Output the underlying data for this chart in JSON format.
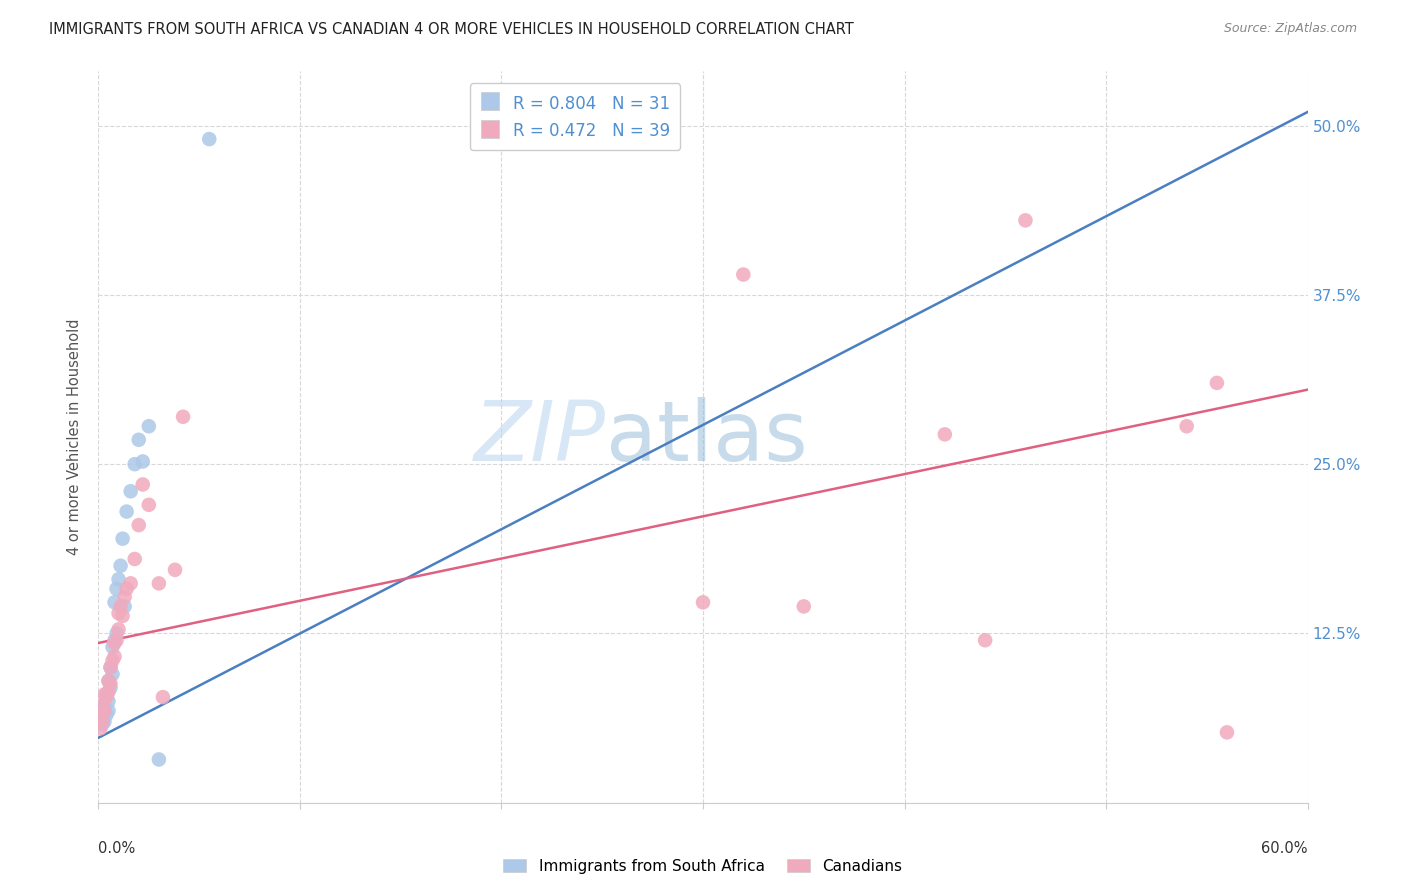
{
  "title": "IMMIGRANTS FROM SOUTH AFRICA VS CANADIAN 4 OR MORE VEHICLES IN HOUSEHOLD CORRELATION CHART",
  "source": "Source: ZipAtlas.com",
  "ylabel": "4 or more Vehicles in Household",
  "watermark_zip": "ZIP",
  "watermark_atlas": "atlas",
  "xlim": [
    0.0,
    0.6
  ],
  "ylim": [
    0.0,
    0.54
  ],
  "ytick_vals": [
    0.0,
    0.125,
    0.25,
    0.375,
    0.5
  ],
  "ytick_labels": [
    "",
    "12.5%",
    "25.0%",
    "37.5%",
    "50.0%"
  ],
  "blue_R": "0.804",
  "blue_N": "31",
  "pink_R": "0.472",
  "pink_N": "39",
  "blue_scatter_color": "#adc8e8",
  "pink_scatter_color": "#f0aabe",
  "blue_line_color": "#4a7fc1",
  "pink_line_color": "#e06080",
  "label_color": "#5090d0",
  "grid_color": "#d8d8d8",
  "blue_x": [
    0.001,
    0.001,
    0.002,
    0.002,
    0.003,
    0.003,
    0.004,
    0.004,
    0.005,
    0.005,
    0.005,
    0.006,
    0.006,
    0.007,
    0.007,
    0.008,
    0.008,
    0.009,
    0.009,
    0.01,
    0.011,
    0.012,
    0.013,
    0.014,
    0.016,
    0.018,
    0.02,
    0.022,
    0.025,
    0.03,
    0.055
  ],
  "blue_y": [
    0.062,
    0.068,
    0.058,
    0.07,
    0.06,
    0.072,
    0.065,
    0.08,
    0.068,
    0.075,
    0.09,
    0.085,
    0.1,
    0.095,
    0.115,
    0.12,
    0.148,
    0.125,
    0.158,
    0.165,
    0.175,
    0.195,
    0.145,
    0.215,
    0.23,
    0.25,
    0.268,
    0.252,
    0.278,
    0.032,
    0.49
  ],
  "pink_x": [
    0.001,
    0.001,
    0.002,
    0.002,
    0.003,
    0.003,
    0.004,
    0.005,
    0.005,
    0.006,
    0.006,
    0.007,
    0.008,
    0.008,
    0.009,
    0.01,
    0.01,
    0.011,
    0.012,
    0.013,
    0.014,
    0.016,
    0.018,
    0.02,
    0.022,
    0.025,
    0.03,
    0.032,
    0.038,
    0.042,
    0.3,
    0.32,
    0.35,
    0.42,
    0.44,
    0.46,
    0.54,
    0.555,
    0.56
  ],
  "pink_y": [
    0.055,
    0.065,
    0.06,
    0.072,
    0.068,
    0.08,
    0.078,
    0.082,
    0.09,
    0.088,
    0.1,
    0.105,
    0.108,
    0.118,
    0.12,
    0.128,
    0.14,
    0.145,
    0.138,
    0.152,
    0.158,
    0.162,
    0.18,
    0.205,
    0.235,
    0.22,
    0.162,
    0.078,
    0.172,
    0.285,
    0.148,
    0.39,
    0.145,
    0.272,
    0.12,
    0.43,
    0.278,
    0.31,
    0.052
  ]
}
